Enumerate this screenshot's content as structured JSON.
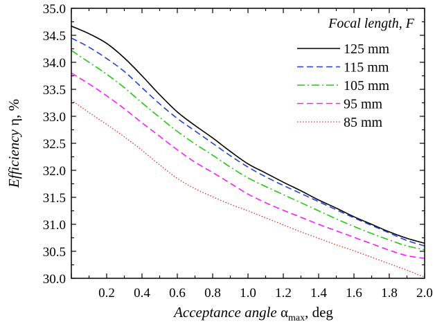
{
  "chart_data": {
    "type": "line",
    "xlabel": {
      "italic": "Acceptance angle ",
      "symbol": "α",
      "sub": "max",
      "rest": ", deg"
    },
    "ylabel": {
      "italic": "Efficiency ",
      "rest": "η, %"
    },
    "xlim": [
      0.0,
      2.0
    ],
    "ylim": [
      30.0,
      35.0
    ],
    "x_ticks": [
      "0.2",
      "0.4",
      "0.6",
      "0.8",
      "1.0",
      "1.2",
      "1.4",
      "1.6",
      "1.8",
      "2.0"
    ],
    "y_ticks": [
      "30.0",
      "30.5",
      "31.0",
      "31.5",
      "32.0",
      "32.5",
      "33.0",
      "33.5",
      "34.0",
      "34.5",
      "35.0"
    ],
    "legend": {
      "title_italic": "Focal length",
      "title_rest": ", ",
      "title_symbol": "F",
      "position": "top-right"
    },
    "x": [
      0.0,
      0.1,
      0.2,
      0.3,
      0.4,
      0.5,
      0.6,
      0.7,
      0.8,
      0.9,
      1.0,
      1.1,
      1.2,
      1.3,
      1.4,
      1.5,
      1.6,
      1.7,
      1.8,
      1.9,
      2.0
    ],
    "series": [
      {
        "name": "125 mm",
        "color": "#000000",
        "dash": "solid",
        "values": [
          34.67,
          34.53,
          34.35,
          34.08,
          33.75,
          33.4,
          33.08,
          32.83,
          32.6,
          32.35,
          32.12,
          31.95,
          31.78,
          31.62,
          31.45,
          31.3,
          31.14,
          31.0,
          30.86,
          30.74,
          30.65
        ]
      },
      {
        "name": "115 mm",
        "color": "#1f3fe0",
        "dash": "dashed",
        "values": [
          34.45,
          34.28,
          34.07,
          33.83,
          33.53,
          33.23,
          32.96,
          32.73,
          32.5,
          32.27,
          32.06,
          31.88,
          31.72,
          31.57,
          31.42,
          31.27,
          31.12,
          30.98,
          30.84,
          30.7,
          30.6
        ]
      },
      {
        "name": "105 mm",
        "color": "#22c90e",
        "dash": "dashdot",
        "values": [
          34.22,
          34.0,
          33.78,
          33.53,
          33.25,
          32.98,
          32.72,
          32.49,
          32.28,
          32.06,
          31.86,
          31.7,
          31.55,
          31.4,
          31.25,
          31.1,
          30.96,
          30.83,
          30.71,
          30.6,
          30.53
        ]
      },
      {
        "name": "95 mm",
        "color": "#ff18ff",
        "dash": "dashed",
        "values": [
          33.8,
          33.6,
          33.38,
          33.14,
          32.88,
          32.63,
          32.38,
          32.15,
          31.96,
          31.76,
          31.56,
          31.4,
          31.26,
          31.13,
          31.0,
          30.88,
          30.76,
          30.64,
          30.52,
          30.42,
          30.37
        ]
      },
      {
        "name": "85 mm",
        "color": "#e8261c",
        "dash": "dotted",
        "values": [
          33.3,
          33.07,
          32.85,
          32.62,
          32.37,
          32.1,
          31.85,
          31.66,
          31.51,
          31.37,
          31.25,
          31.12,
          30.99,
          30.86,
          30.74,
          30.62,
          30.51,
          30.39,
          30.27,
          30.15,
          30.02
        ]
      }
    ]
  }
}
